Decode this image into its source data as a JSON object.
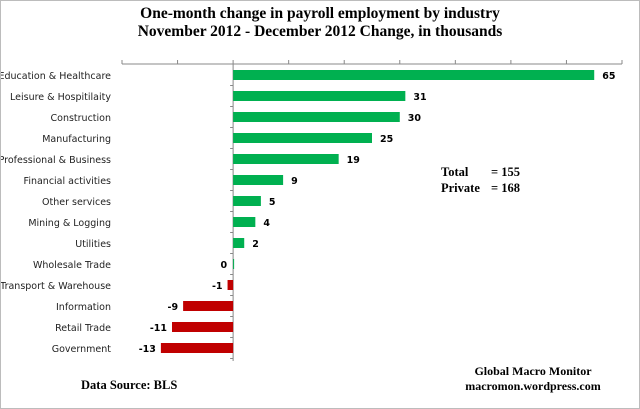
{
  "chart_data": {
    "type": "bar",
    "orientation": "horizontal",
    "title": "One-month change in payroll employment by industry",
    "subtitle": "November 2012 - December 2012  Change, in thousands",
    "categories": [
      "Education & Healthcare",
      "Leisure & Hospitilaity",
      "Construction",
      "Manufacturing",
      "Professional & Business",
      "Financial activities",
      "Other services",
      "Mining & Logging",
      "Utilities",
      "Wholesale Trade",
      "Transport & Warehouse",
      "Information",
      "Retail Trade",
      "Government"
    ],
    "values": [
      65,
      31,
      30,
      25,
      19,
      9,
      5,
      4,
      2,
      0,
      -1,
      -9,
      -11,
      -13
    ],
    "xlim": [
      -20,
      70
    ],
    "tick_step": 10,
    "tick_labels_shown": false,
    "grid": false,
    "colors": {
      "positive": "#00b050",
      "negative": "#c00000"
    },
    "annotations": {
      "total_label": "Total",
      "total_value": "=  155",
      "private_label": "Private",
      "private_value": "=  168",
      "source": "Data Source:  BLS",
      "brand": "Global Macro Monitor",
      "site": "macromon.wordpress.com"
    }
  }
}
